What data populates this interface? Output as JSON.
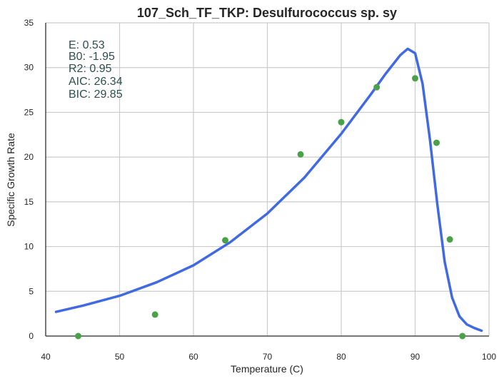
{
  "chart_data": {
    "type": "scatter",
    "title": "107_Sch_TF_TKP: Desulfurococcus sp. sy",
    "xlabel": "Temperature (C)",
    "ylabel": "Specific Growth Rate",
    "xlim": [
      40,
      100
    ],
    "ylim": [
      0,
      35
    ],
    "x_ticks": [
      40,
      50,
      60,
      70,
      80,
      90,
      100
    ],
    "y_ticks": [
      0,
      5,
      10,
      15,
      20,
      25,
      30,
      35
    ],
    "grid": true,
    "stats_lines": [
      "E:  0.53",
      "B0:  -1.95",
      "R2:  0.95",
      "AIC: 26.34",
      "BIC: 29.85"
    ],
    "series": [
      {
        "kind": "points",
        "color": "#4aa248",
        "x": [
          44.4,
          54.8,
          64.3,
          74.5,
          80.0,
          84.8,
          90.0,
          92.9,
          94.7,
          96.4
        ],
        "y": [
          0.0,
          2.4,
          10.7,
          20.3,
          23.9,
          27.8,
          28.8,
          21.6,
          10.8,
          0.0
        ]
      },
      {
        "kind": "fit",
        "color": "#4169e1",
        "x": [
          41.4,
          45,
          50,
          55,
          60,
          65,
          70,
          75,
          80,
          84,
          86,
          88,
          89,
          90,
          91,
          92,
          93,
          94,
          95,
          96,
          97,
          98,
          99
        ],
        "y": [
          2.7,
          3.4,
          4.5,
          6.0,
          7.9,
          10.5,
          13.7,
          17.7,
          22.6,
          27.0,
          29.3,
          31.4,
          32.1,
          31.6,
          28.2,
          22.0,
          14.8,
          8.3,
          4.3,
          2.2,
          1.3,
          0.9,
          0.6
        ]
      }
    ]
  }
}
